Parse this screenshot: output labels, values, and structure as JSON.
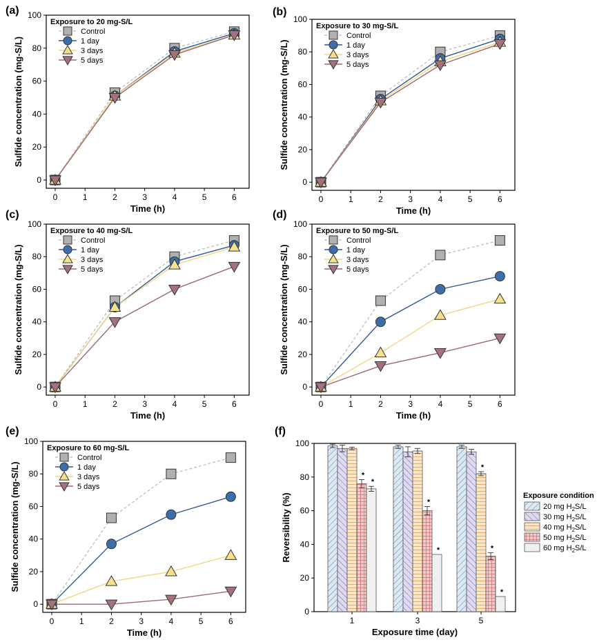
{
  "chart_data": [
    {
      "type": "line",
      "panel_label": "(a)",
      "legend_title": "Exposure to 20 mg-S/L",
      "xlabel": "Time (h)",
      "ylabel": "Sulfide concentration (mg-S/L)",
      "xlim": [
        -0.3,
        6.5
      ],
      "ylim": [
        -5,
        100
      ],
      "xticks": [
        0,
        1,
        2,
        3,
        4,
        5,
        6
      ],
      "yticks": [
        0,
        20,
        40,
        60,
        80,
        100
      ],
      "x": [
        0,
        2,
        4,
        6
      ],
      "series": [
        {
          "name": "Control",
          "values": [
            0,
            53,
            80,
            90
          ]
        },
        {
          "name": "1 day",
          "values": [
            0,
            51,
            78,
            89
          ]
        },
        {
          "name": "3 days",
          "values": [
            0,
            51,
            77,
            88
          ]
        },
        {
          "name": "5 days",
          "values": [
            0,
            50,
            76,
            88
          ]
        }
      ]
    },
    {
      "type": "line",
      "panel_label": "(b)",
      "legend_title": "Exposure to 30 mg-S/L",
      "xlabel": "Time (h)",
      "ylabel": "Sulfide concentration (mg-S/L)",
      "xlim": [
        -0.3,
        6.5
      ],
      "ylim": [
        -5,
        100
      ],
      "xticks": [
        0,
        1,
        2,
        3,
        4,
        5,
        6
      ],
      "yticks": [
        0,
        20,
        40,
        60,
        80,
        100
      ],
      "x": [
        0,
        2,
        4,
        6
      ],
      "series": [
        {
          "name": "Control",
          "values": [
            0,
            53,
            80,
            90
          ]
        },
        {
          "name": "1 day",
          "values": [
            0,
            51,
            76,
            88
          ]
        },
        {
          "name": "3 days",
          "values": [
            0,
            50,
            74,
            86
          ]
        },
        {
          "name": "5 days",
          "values": [
            0,
            49,
            72,
            85
          ]
        }
      ]
    },
    {
      "type": "line",
      "panel_label": "(c)",
      "legend_title": "Exposure to 40 mg-S/L",
      "xlabel": "Time (h)",
      "ylabel": "Sulfide concentration (mg-S/L)",
      "xlim": [
        -0.3,
        6.5
      ],
      "ylim": [
        -5,
        100
      ],
      "xticks": [
        0,
        1,
        2,
        3,
        4,
        5,
        6
      ],
      "yticks": [
        0,
        20,
        40,
        60,
        80,
        100
      ],
      "x": [
        0,
        2,
        4,
        6
      ],
      "series": [
        {
          "name": "Control",
          "values": [
            0,
            53,
            80,
            90
          ]
        },
        {
          "name": "1 day",
          "values": [
            0,
            49,
            77,
            87
          ]
        },
        {
          "name": "3 days",
          "values": [
            0,
            49,
            75,
            86
          ]
        },
        {
          "name": "5 days",
          "values": [
            0,
            40,
            60,
            74
          ]
        }
      ]
    },
    {
      "type": "line",
      "panel_label": "(d)",
      "legend_title": "Exposure to 50 mg-S/L",
      "xlabel": "Time (h)",
      "ylabel": "Sulfide concentration (mg-S/L)",
      "xlim": [
        -0.3,
        6.5
      ],
      "ylim": [
        -5,
        100
      ],
      "xticks": [
        0,
        1,
        2,
        3,
        4,
        5,
        6
      ],
      "yticks": [
        0,
        20,
        40,
        60,
        80,
        100
      ],
      "x": [
        0,
        2,
        4,
        6
      ],
      "series": [
        {
          "name": "Control",
          "values": [
            0,
            53,
            81,
            90
          ]
        },
        {
          "name": "1 day",
          "values": [
            0,
            40,
            60,
            68
          ]
        },
        {
          "name": "3 days",
          "values": [
            0,
            21,
            44,
            54
          ]
        },
        {
          "name": "5 days",
          "values": [
            0,
            13,
            21,
            30
          ]
        }
      ]
    },
    {
      "type": "line",
      "panel_label": "(e)",
      "legend_title": "Exposure to 60 mg-S/L",
      "xlabel": "Time (h)",
      "ylabel": "Sulfide concentration (mg-S/L)",
      "xlim": [
        -0.3,
        6.5
      ],
      "ylim": [
        -5,
        100
      ],
      "xticks": [
        0,
        1,
        2,
        3,
        4,
        5,
        6
      ],
      "yticks": [
        0,
        20,
        40,
        60,
        80,
        100
      ],
      "x": [
        0,
        2,
        4,
        6
      ],
      "series": [
        {
          "name": "Control",
          "values": [
            0,
            53,
            80,
            90
          ]
        },
        {
          "name": "1 day",
          "values": [
            0,
            37,
            55,
            66
          ]
        },
        {
          "name": "3 days",
          "values": [
            0,
            14,
            20,
            30
          ]
        },
        {
          "name": "5 days",
          "values": [
            0,
            0,
            3,
            8
          ]
        }
      ]
    },
    {
      "type": "bar",
      "panel_label": "(f)",
      "xlabel": "Exposure time (day)",
      "ylabel": "Reversibility (%)",
      "ylim": [
        0,
        100
      ],
      "yticks": [
        0,
        20,
        40,
        60,
        80,
        100
      ],
      "categories": [
        "1",
        "3",
        "5"
      ],
      "legend_title": "Exposure condition",
      "series": [
        {
          "name": "20 mg H2S/L",
          "label_main": "20 mg H",
          "label_sub": "2",
          "label_tail": "S/L",
          "values": [
            98.5,
            98,
            98
          ],
          "errors": [
            1,
            1,
            1
          ],
          "sig": [
            false,
            false,
            false
          ]
        },
        {
          "name": "30 mg H2S/L",
          "label_main": "30 mg H",
          "label_sub": "2",
          "label_tail": "S/L",
          "values": [
            97,
            95,
            95
          ],
          "errors": [
            2,
            3,
            1.5
          ],
          "sig": [
            false,
            false,
            false
          ]
        },
        {
          "name": "40 mg H2S/L",
          "label_main": "40 mg H",
          "label_sub": "2",
          "label_tail": "S/L",
          "values": [
            97,
            95.5,
            82
          ],
          "errors": [
            0.8,
            1.5,
            1.2
          ],
          "sig": [
            false,
            false,
            true
          ]
        },
        {
          "name": "50 mg H2S/L",
          "label_main": "50 mg H",
          "label_sub": "2",
          "label_tail": "S/L",
          "values": [
            76,
            60,
            33
          ],
          "errors": [
            2.5,
            2.5,
            2
          ],
          "sig": [
            true,
            true,
            true
          ]
        },
        {
          "name": "60 mg H2S/L",
          "label_main": "60 mg H",
          "label_sub": "2",
          "label_tail": "S/L",
          "values": [
            73,
            34,
            9
          ],
          "errors": [
            1.5,
            0,
            0
          ],
          "sig": [
            true,
            true,
            true
          ]
        }
      ],
      "significance_marker": "*"
    }
  ],
  "colors": {
    "control_fill": "#b0b0b0",
    "day1_fill": "#3e6eaa",
    "day1_line": "#2c5a96",
    "day3_fill": "#f6e08e",
    "day3_line": "#f2d77e",
    "day5_fill": "#a4727c",
    "day5_line": "#9a6873",
    "bar_20": "#dce9f3",
    "bar_30": "#dedaf0",
    "bar_40": "#fbe6c8",
    "bar_50": "#f2c9c9",
    "bar_60": "#eeeeee"
  }
}
